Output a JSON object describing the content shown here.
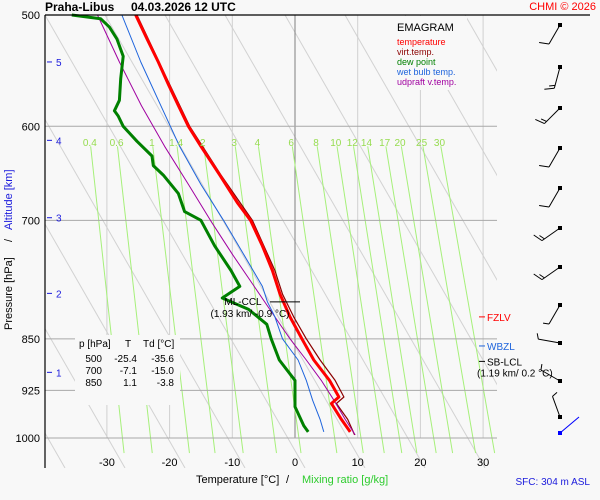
{
  "header": {
    "station": "Praha-Libus",
    "datetime": "04.03.2026 12 UTC",
    "copyright": "CHMI © 2026"
  },
  "chart_data": {
    "type": "line",
    "title": "EMAGRAM",
    "xlabel_temp": "Temperature [°C]",
    "xlabel_sep": "/",
    "xlabel_mix": "Mixing ratio [g/kg]",
    "ylabel_pres": "Pressure [hPa]",
    "ylabel_sep": "/",
    "ylabel_alt": "Altitude [km]",
    "xlim": [
      -39.5,
      32.5
    ],
    "ylim": [
      1000,
      500
    ],
    "x_ticks": [
      "-30",
      "-20",
      "-10",
      "0",
      "10",
      "20",
      "30"
    ],
    "x_tick_values": [
      -30,
      -20,
      -10,
      0,
      10,
      20,
      30
    ],
    "p_ticks": [
      "500",
      "600",
      "700",
      "850",
      "925",
      "1000"
    ],
    "p_tick_values": [
      500,
      600,
      700,
      850,
      925,
      1000
    ],
    "alt_ticks": [
      "5",
      "4",
      "3",
      "2",
      "1"
    ],
    "alt_tick_pressures": [
      540,
      614,
      697,
      789,
      898
    ],
    "mixing_ratio_labels": [
      "0.4",
      "0.6",
      "1",
      "1.4",
      "2",
      "3",
      "4",
      "6",
      "8",
      "10",
      "12",
      "14",
      "17",
      "20",
      "25",
      "30"
    ],
    "mixing_ratio_values": [
      0.4,
      0.6,
      1,
      1.4,
      2,
      3,
      4,
      6,
      8,
      10,
      12,
      14,
      17,
      20,
      25,
      30
    ],
    "legend": [
      {
        "label": "temperature",
        "color": "#ff0000"
      },
      {
        "label": "virt.temp.",
        "color": "#8b0000"
      },
      {
        "label": "dew point",
        "color": "#008000"
      },
      {
        "label": "wet bulb temp.",
        "color": "#1e64dc"
      },
      {
        "label": "udpraft v.temp.",
        "color": "#a000a0"
      }
    ],
    "series": [
      {
        "name": "temperature",
        "color": "#ff0000",
        "points": [
          [
            500,
            -25.4
          ],
          [
            520,
            -23.6
          ],
          [
            540,
            -21.8
          ],
          [
            560,
            -20.2
          ],
          [
            580,
            -18.6
          ],
          [
            600,
            -17.0
          ],
          [
            620,
            -15.0
          ],
          [
            650,
            -12.0
          ],
          [
            680,
            -9.2
          ],
          [
            700,
            -7.1
          ],
          [
            730,
            -5.2
          ],
          [
            760,
            -3.6
          ],
          [
            790,
            -2.4
          ],
          [
            820,
            -0.8
          ],
          [
            850,
            1.1
          ],
          [
            880,
            3.0
          ],
          [
            910,
            5.5
          ],
          [
            935,
            7.0
          ],
          [
            945,
            5.8
          ],
          [
            970,
            7.4
          ],
          [
            990,
            8.8
          ]
        ]
      },
      {
        "name": "virt.temp.",
        "color": "#8b0000",
        "points": [
          [
            500,
            -25.2
          ],
          [
            560,
            -20.0
          ],
          [
            600,
            -16.8
          ],
          [
            650,
            -11.8
          ],
          [
            700,
            -6.8
          ],
          [
            760,
            -3.2
          ],
          [
            790,
            -2.0
          ],
          [
            820,
            -0.2
          ],
          [
            850,
            1.8
          ],
          [
            880,
            4.0
          ],
          [
            910,
            6.4
          ],
          [
            935,
            7.8
          ],
          [
            945,
            6.6
          ],
          [
            970,
            8.4
          ],
          [
            995,
            9.5
          ]
        ]
      },
      {
        "name": "dew point",
        "color": "#008000",
        "points": [
          [
            500,
            -35.6
          ],
          [
            503,
            -31.0
          ],
          [
            510,
            -29.6
          ],
          [
            520,
            -28.4
          ],
          [
            535,
            -27.4
          ],
          [
            555,
            -27.8
          ],
          [
            575,
            -28.0
          ],
          [
            585,
            -28.8
          ],
          [
            590,
            -28.2
          ],
          [
            600,
            -27.4
          ],
          [
            615,
            -25.2
          ],
          [
            630,
            -22.8
          ],
          [
            640,
            -22.6
          ],
          [
            650,
            -21.0
          ],
          [
            670,
            -18.6
          ],
          [
            690,
            -17.6
          ],
          [
            700,
            -15.0
          ],
          [
            730,
            -12.8
          ],
          [
            760,
            -10.2
          ],
          [
            780,
            -8.8
          ],
          [
            795,
            -11.6
          ],
          [
            810,
            -7.4
          ],
          [
            830,
            -4.5
          ],
          [
            850,
            -3.8
          ],
          [
            880,
            -2.5
          ],
          [
            910,
            0.0
          ],
          [
            950,
            0.0
          ],
          [
            980,
            1.4
          ],
          [
            990,
            2.1
          ]
        ]
      },
      {
        "name": "wet bulb temp.",
        "color": "#1e64dc",
        "points": [
          [
            500,
            -27.6
          ],
          [
            540,
            -24.6
          ],
          [
            580,
            -21.4
          ],
          [
            620,
            -18.4
          ],
          [
            660,
            -15.0
          ],
          [
            700,
            -11.4
          ],
          [
            740,
            -8.2
          ],
          [
            780,
            -5.2
          ],
          [
            800,
            -4.4
          ],
          [
            820,
            -3.2
          ],
          [
            850,
            -2.0
          ],
          [
            880,
            0.5
          ],
          [
            910,
            1.8
          ],
          [
            940,
            2.8
          ],
          [
            970,
            4.0
          ],
          [
            990,
            4.6
          ]
        ]
      },
      {
        "name": "udpraft v.temp.",
        "color": "#a000a0",
        "points": [
          [
            500,
            -31.5
          ],
          [
            540,
            -28.0
          ],
          [
            580,
            -24.5
          ],
          [
            620,
            -20.8
          ],
          [
            660,
            -17.0
          ],
          [
            700,
            -13.5
          ],
          [
            740,
            -10.0
          ],
          [
            780,
            -6.5
          ],
          [
            820,
            -3.2
          ],
          [
            850,
            -0.8
          ],
          [
            880,
            1.8
          ],
          [
            910,
            4.2
          ],
          [
            940,
            6.2
          ],
          [
            970,
            8.0
          ],
          [
            995,
            9.6
          ]
        ]
      }
    ],
    "annotations": [
      {
        "label": "ML-CCL",
        "sub": "(1.93 km/ -0.9 °C)",
        "pressure": 800,
        "color": "#000000"
      },
      {
        "label": "FZLV",
        "pressure": 820,
        "color": "#ff0000"
      },
      {
        "label": "WBZL",
        "pressure": 860,
        "color": "#1e64dc"
      },
      {
        "label": "SB-LCL",
        "sub": "(1.19 km/ 0.2 °C)",
        "pressure": 882,
        "color": "#000000"
      }
    ],
    "table": {
      "headers": [
        "p [hPa]",
        "T",
        "Td [°C]"
      ],
      "rows": [
        [
          "500",
          "-25.4",
          "-35.6"
        ],
        [
          "700",
          "-7.1",
          "-15.0"
        ],
        [
          "850",
          "1.1",
          "-3.8"
        ]
      ]
    },
    "wind_barbs": [
      {
        "pressure": 505,
        "dir": 210,
        "speed_kt": 10
      },
      {
        "pressure": 545,
        "dir": 195,
        "speed_kt": 15
      },
      {
        "pressure": 595,
        "dir": 225,
        "speed_kt": 15
      },
      {
        "pressure": 640,
        "dir": 210,
        "speed_kt": 10
      },
      {
        "pressure": 688,
        "dir": 210,
        "speed_kt": 10
      },
      {
        "pressure": 740,
        "dir": 235,
        "speed_kt": 15
      },
      {
        "pressure": 790,
        "dir": 235,
        "speed_kt": 15
      },
      {
        "pressure": 842,
        "dir": 210,
        "speed_kt": 5
      },
      {
        "pressure": 898,
        "dir": 280,
        "speed_kt": 5
      },
      {
        "pressure": 955,
        "dir": 300,
        "speed_kt": 5
      },
      {
        "pressure": 1000,
        "dir": 340,
        "speed_kt": 5
      },
      {
        "pressure": 1025,
        "dir": 225,
        "speed_kt": 0,
        "surface": true
      }
    ],
    "surface": "SFC: 304 m ASL"
  }
}
